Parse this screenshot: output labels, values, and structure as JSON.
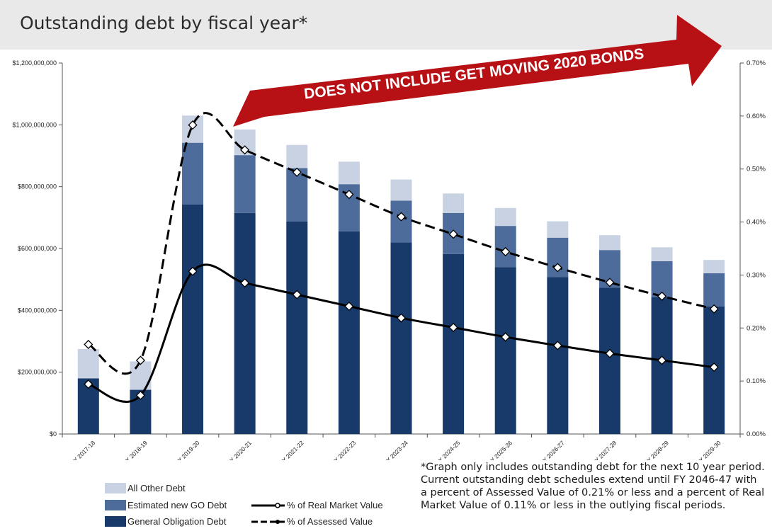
{
  "header": {
    "title": "Outstanding debt by fiscal year*"
  },
  "banner": {
    "text": "DOES NOT INCLUDE GET MOVING 2020 BONDS"
  },
  "colors": {
    "general_obligation": "#183a6a",
    "estimated_new_go": "#4d6c9b",
    "all_other": "#c9d2e3",
    "banner_red": "#b71116",
    "line": "#000000"
  },
  "legend": {
    "all_other": "All Other Debt",
    "estimated_go": "Estimated new GO Debt",
    "general_obligation": "General Obligation Debt",
    "real_market": "% of Real Market Value",
    "assessed": "% of Assessed Value"
  },
  "footnote": {
    "lines": [
      "*Graph only includes outstanding debt for the next 10 year period.",
      "Current outstanding debt schedules extend until FY 2046-47 with",
      "a percent of Assessed Value of  0.21% or less and a percent of Real",
      "Market Value of 0.11% or less in the outlying fiscal periods."
    ]
  },
  "chart_data": {
    "type": "bar",
    "categories": [
      "FY 2017-18",
      "FY 2018-19",
      "FY 2019-20",
      "FY 2020-21",
      "FY 2021-22",
      "FY 2022-23",
      "FY 2023-24",
      "FY 2024-25",
      "FY 2025-26",
      "FY 2026-27",
      "FY 2027-28",
      "FY 2028-29",
      "FY 2029-30"
    ],
    "stacked": true,
    "series": [
      {
        "name": "General Obligation Debt",
        "axis": "left",
        "values": [
          180000000,
          143000000,
          742000000,
          715000000,
          687000000,
          655000000,
          620000000,
          582000000,
          540000000,
          508000000,
          473000000,
          442000000,
          413000000
        ]
      },
      {
        "name": "Estimated new GO Debt",
        "axis": "left",
        "values": [
          0,
          0,
          200000000,
          187000000,
          173000000,
          153000000,
          135000000,
          133000000,
          133000000,
          127000000,
          122000000,
          117000000,
          107000000
        ]
      },
      {
        "name": "All Other Debt",
        "axis": "left",
        "values": [
          95000000,
          92000000,
          88000000,
          83000000,
          75000000,
          73000000,
          68000000,
          63000000,
          58000000,
          53000000,
          48000000,
          45000000,
          43000000
        ]
      }
    ],
    "lines": [
      {
        "name": "% of Real Market Value",
        "axis": "right",
        "style": "solid",
        "values": [
          0.094,
          0.073,
          0.307,
          0.285,
          0.263,
          0.241,
          0.219,
          0.201,
          0.183,
          0.167,
          0.152,
          0.139,
          0.126
        ]
      },
      {
        "name": "% of Assessed Value",
        "axis": "right",
        "style": "dashed",
        "values": [
          0.169,
          0.139,
          0.583,
          0.536,
          0.494,
          0.452,
          0.41,
          0.377,
          0.344,
          0.314,
          0.286,
          0.26,
          0.236
        ]
      }
    ],
    "y_left": {
      "min": 0,
      "max": 1200000000,
      "ticks": [
        0,
        200000000,
        400000000,
        600000000,
        800000000,
        1000000000,
        1200000000
      ],
      "tick_labels": [
        "$0",
        "$200,000,000",
        "$400,000,000",
        "$600,000,000",
        "$800,000,000",
        "$1,000,000,000",
        "$1,200,000,000"
      ]
    },
    "y_right": {
      "min": 0,
      "max": 0.7,
      "ticks": [
        0,
        0.1,
        0.2,
        0.3,
        0.4,
        0.5,
        0.6,
        0.7
      ],
      "tick_labels": [
        "0.00%",
        "0.10%",
        "0.20%",
        "0.30%",
        "0.40%",
        "0.50%",
        "0.60%",
        "0.70%"
      ]
    },
    "grid": false,
    "legend_position": "bottom-left"
  }
}
